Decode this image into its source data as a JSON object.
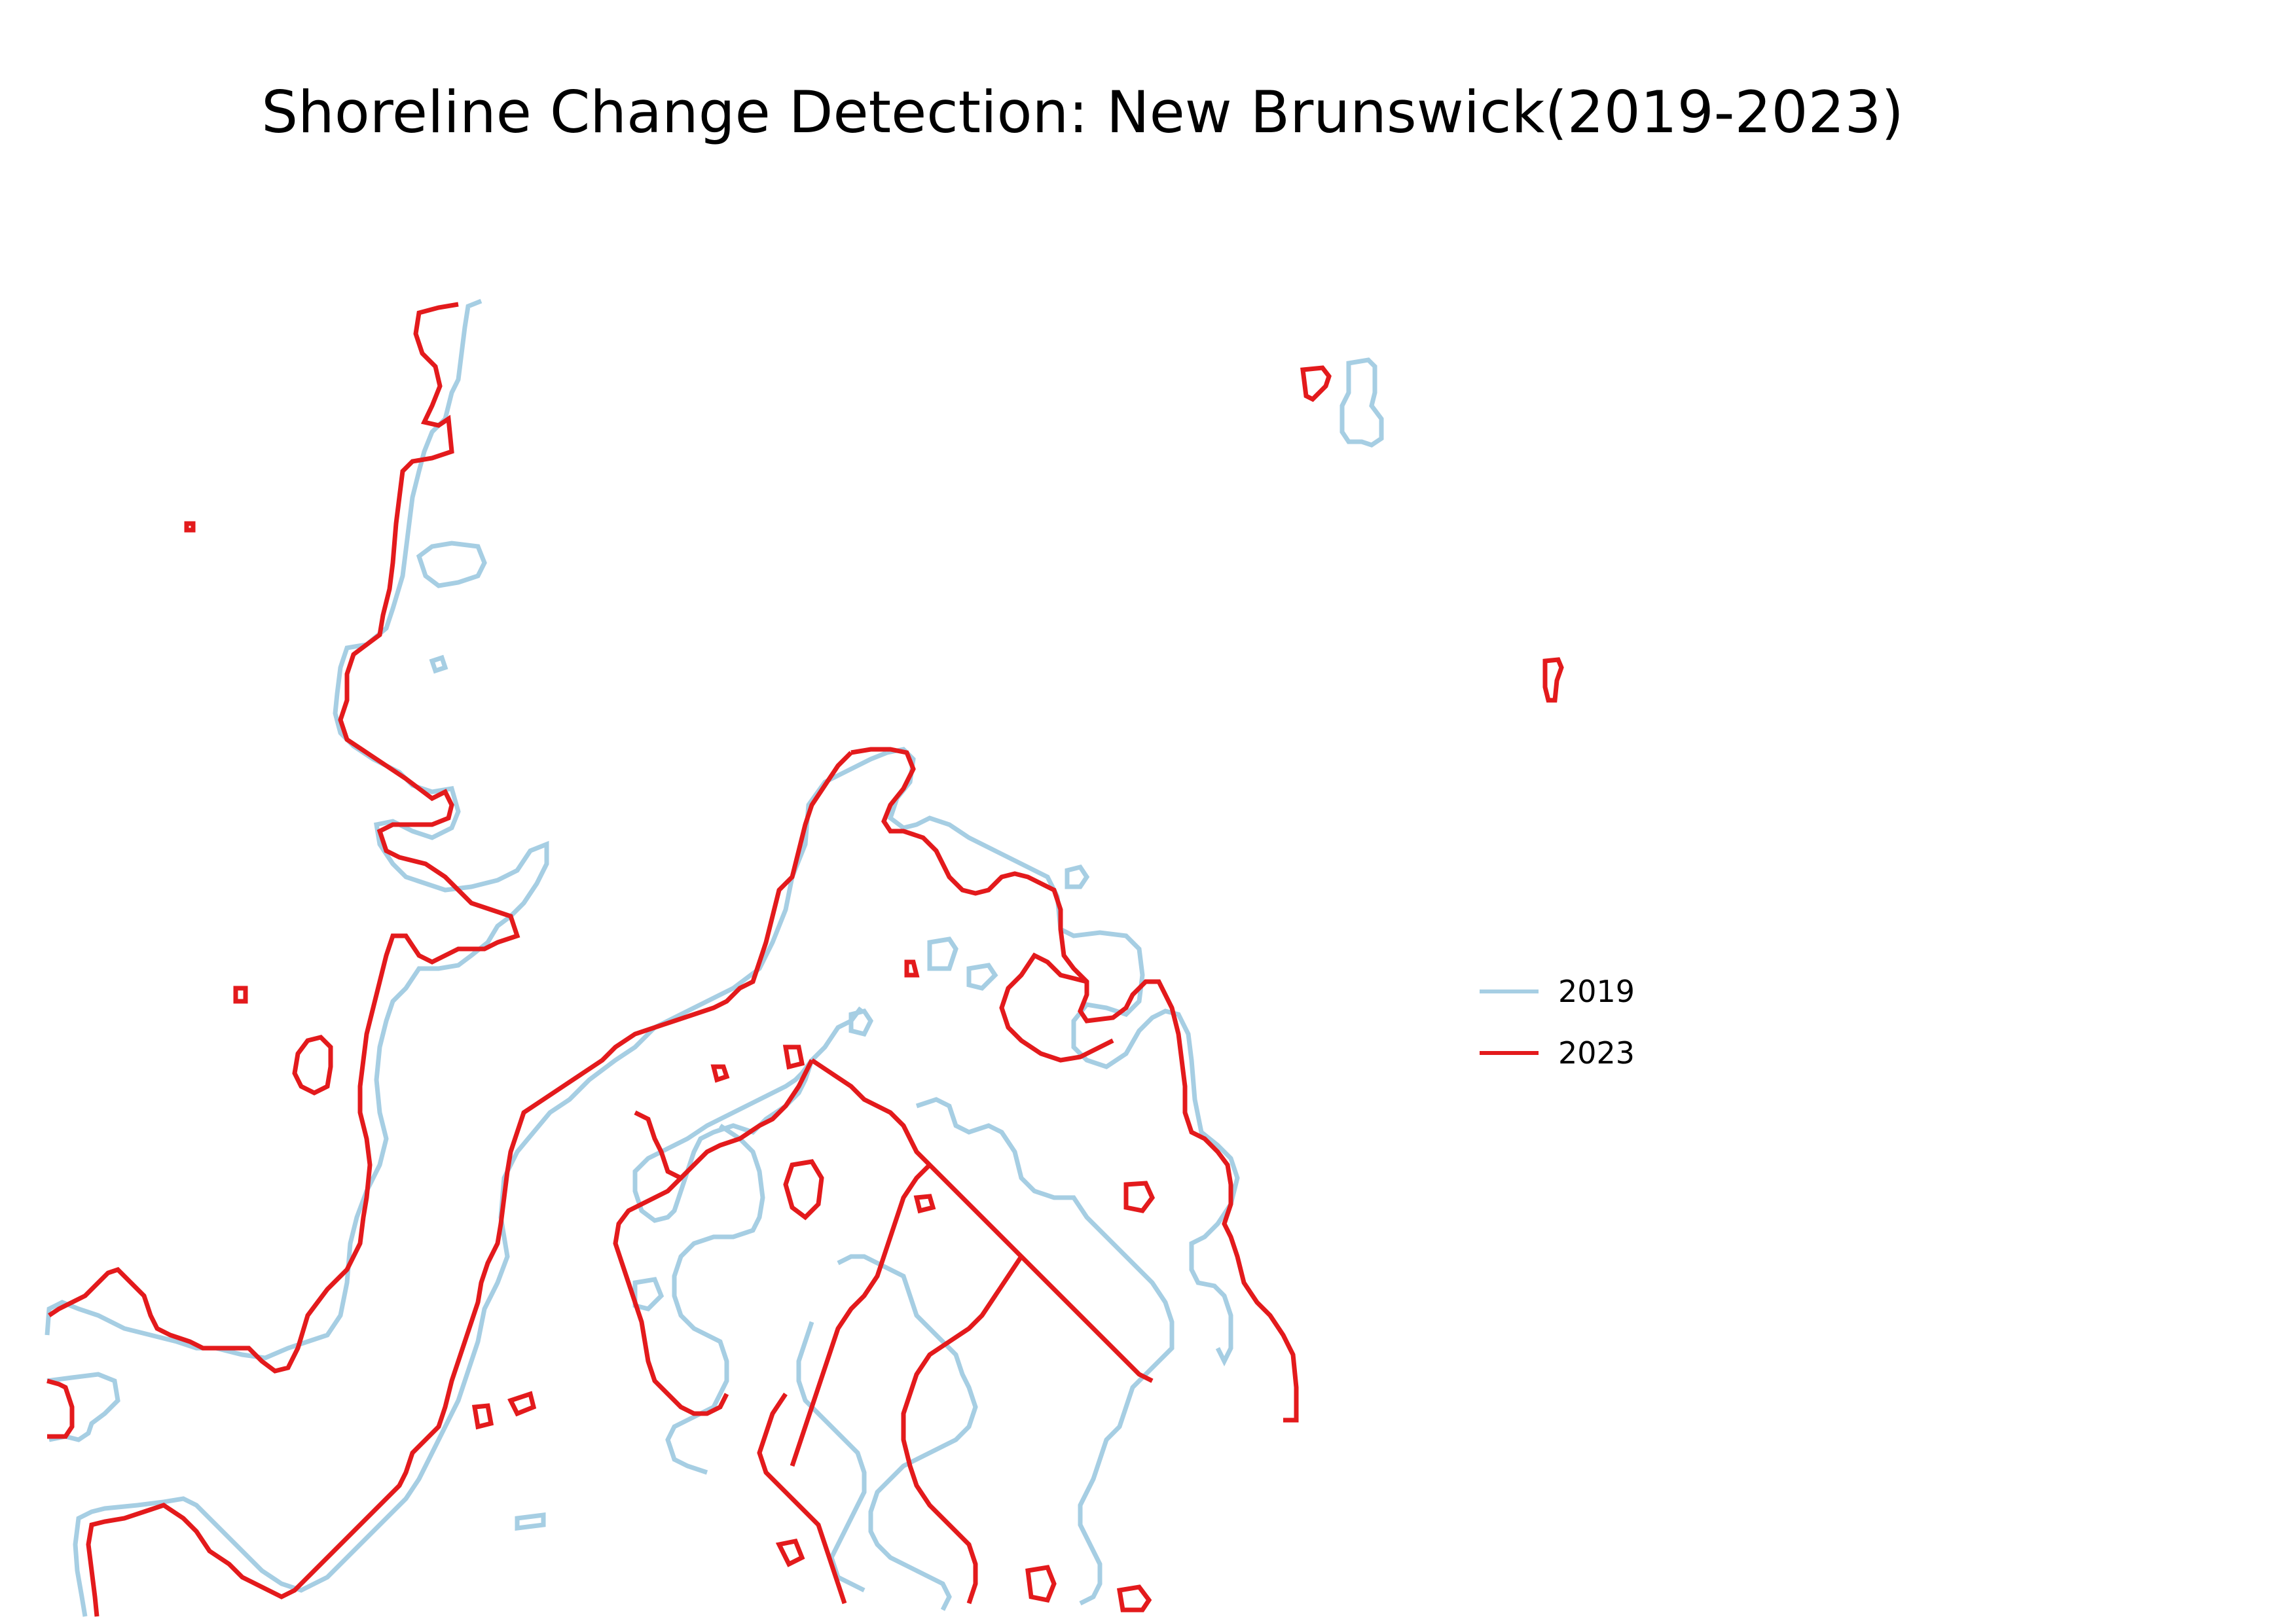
{
  "map": {
    "title": "Shoreline Change Detection: New Brunswick(2019-2023)"
  },
  "legend": {
    "items": [
      {
        "label": "2019",
        "color": "#a6cee3"
      },
      {
        "label": "2023",
        "color": "#e31a1c"
      }
    ]
  },
  "colors": {
    "background": "#ffffff",
    "shoreline_2019": "#a6cee3",
    "shoreline_2023": "#e31a1c"
  }
}
